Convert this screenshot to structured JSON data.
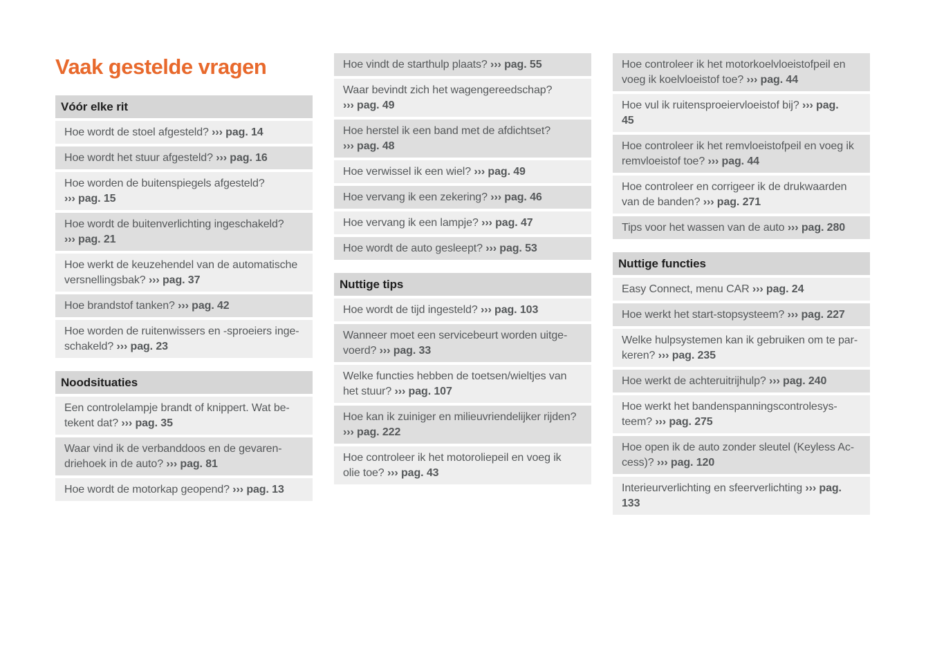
{
  "page": {
    "title": "Vaak gestelde vragen",
    "ref_marker": "›››"
  },
  "colors": {
    "page_bg": "#ffffff",
    "title_color": "#e8692c",
    "header_bg": "#d6d6d6",
    "header_text": "#1e1e1e",
    "row_light_bg": "#eeeeee",
    "row_dark_bg": "#dedede",
    "item_text": "#55585a"
  },
  "columns": [
    {
      "blocks": [
        {
          "type": "header",
          "label": "Vóór elke rit"
        },
        {
          "type": "item",
          "shade": "light",
          "lines": [
            "Hoe wordt de stoel afgesteld? ››› pag. 14"
          ]
        },
        {
          "type": "item",
          "shade": "dark",
          "lines": [
            "Hoe wordt het stuur afgesteld? ››› pag. 16"
          ]
        },
        {
          "type": "item",
          "shade": "light",
          "lines": [
            "Hoe worden de buitenspiegels afgesteld?",
            "››› pag. 15"
          ]
        },
        {
          "type": "item",
          "shade": "dark",
          "lines": [
            "Hoe wordt de buitenverlichting ingeschakeld?",
            "››› pag. 21"
          ]
        },
        {
          "type": "item",
          "shade": "light",
          "lines": [
            "Hoe werkt de keuzehendel van de automatische",
            "versnellingsbak? ››› pag. 37"
          ]
        },
        {
          "type": "item",
          "shade": "dark",
          "lines": [
            "Hoe brandstof tanken? ››› pag. 42"
          ]
        },
        {
          "type": "item",
          "shade": "light",
          "lines": [
            "Hoe worden de ruitenwissers en -sproeiers inge-",
            "schakeld? ››› pag. 23"
          ]
        },
        {
          "type": "header",
          "label": "Noodsituaties"
        },
        {
          "type": "item",
          "shade": "light",
          "lines": [
            "Een controlelampje brandt of knippert. Wat be-",
            "tekent dat? ››› pag. 35"
          ]
        },
        {
          "type": "item",
          "shade": "dark",
          "lines": [
            "Waar vind ik de verbanddoos en de gevaren-",
            "driehoek in de auto? ››› pag. 81"
          ]
        },
        {
          "type": "item",
          "shade": "light",
          "lines": [
            "Hoe wordt de motorkap geopend? ››› pag. 13"
          ]
        }
      ]
    },
    {
      "blocks": [
        {
          "type": "item",
          "shade": "dark",
          "lines": [
            "Hoe vindt de starthulp plaats? ››› pag. 55"
          ]
        },
        {
          "type": "item",
          "shade": "light",
          "lines": [
            "Waar bevindt zich het wagengereedschap?",
            "››› pag. 49"
          ]
        },
        {
          "type": "item",
          "shade": "dark",
          "lines": [
            "Hoe herstel ik een band met de afdichtset?",
            "››› pag. 48"
          ]
        },
        {
          "type": "item",
          "shade": "light",
          "lines": [
            "Hoe verwissel ik een wiel? ››› pag. 49"
          ]
        },
        {
          "type": "item",
          "shade": "dark",
          "lines": [
            "Hoe vervang ik een zekering? ››› pag. 46"
          ]
        },
        {
          "type": "item",
          "shade": "light",
          "lines": [
            "Hoe vervang ik een lampje? ››› pag. 47"
          ]
        },
        {
          "type": "item",
          "shade": "dark",
          "lines": [
            "Hoe wordt de auto gesleept? ››› pag. 53"
          ]
        },
        {
          "type": "header",
          "label": "Nuttige tips"
        },
        {
          "type": "item",
          "shade": "light",
          "lines": [
            "Hoe wordt de tijd ingesteld? ››› pag. 103"
          ]
        },
        {
          "type": "item",
          "shade": "dark",
          "lines": [
            "Wanneer moet een servicebeurt worden uitge-",
            "voerd? ››› pag. 33"
          ]
        },
        {
          "type": "item",
          "shade": "light",
          "lines": [
            "Welke functies hebben de toetsen/wieltjes van",
            "het stuur? ››› pag. 107"
          ]
        },
        {
          "type": "item",
          "shade": "dark",
          "lines": [
            "Hoe kan ik zuiniger en milieuvriendelijker rijden?",
            "››› pag. 222"
          ]
        },
        {
          "type": "item",
          "shade": "light",
          "lines": [
            "Hoe controleer ik het motoroliepeil en voeg ik",
            "olie toe? ››› pag. 43"
          ]
        }
      ]
    },
    {
      "blocks": [
        {
          "type": "item",
          "shade": "dark",
          "lines": [
            "Hoe controleer ik het motorkoelvloeistofpeil en",
            "voeg ik koelvloeistof toe? ››› pag. 44"
          ]
        },
        {
          "type": "item",
          "shade": "light",
          "lines": [
            "Hoe vul ik ruitensproeiervloeistof bij? ››› pag.",
            "45"
          ]
        },
        {
          "type": "item",
          "shade": "dark",
          "lines": [
            "Hoe controleer ik het remvloeistofpeil en voeg ik",
            "remvloeistof toe? ››› pag. 44"
          ]
        },
        {
          "type": "item",
          "shade": "light",
          "lines": [
            "Hoe controleer en corrigeer ik de drukwaarden",
            "van de banden? ››› pag. 271"
          ]
        },
        {
          "type": "item",
          "shade": "dark",
          "lines": [
            "Tips voor het wassen van de auto ››› pag. 280"
          ]
        },
        {
          "type": "header",
          "label": "Nuttige functies"
        },
        {
          "type": "item",
          "shade": "light",
          "lines": [
            "Easy Connect, menu CAR ››› pag. 24"
          ]
        },
        {
          "type": "item",
          "shade": "dark",
          "lines": [
            "Hoe werkt het start-stopsysteem? ››› pag. 227"
          ]
        },
        {
          "type": "item",
          "shade": "light",
          "lines": [
            "Welke hulpsystemen kan ik gebruiken om te par-",
            "keren? ››› pag. 235"
          ]
        },
        {
          "type": "item",
          "shade": "dark",
          "lines": [
            "Hoe werkt de achteruitrijhulp? ››› pag. 240"
          ]
        },
        {
          "type": "item",
          "shade": "light",
          "lines": [
            "Hoe werkt het bandenspanningscontrolesys-",
            "teem? ››› pag. 275"
          ]
        },
        {
          "type": "item",
          "shade": "dark",
          "lines": [
            "Hoe open ik de auto zonder sleutel (Keyless Ac-",
            "cess)? ››› pag. 120"
          ]
        },
        {
          "type": "item",
          "shade": "light",
          "lines": [
            "Interieurverlichting en sfeerverlichting ››› pag.",
            "133"
          ]
        }
      ]
    }
  ]
}
